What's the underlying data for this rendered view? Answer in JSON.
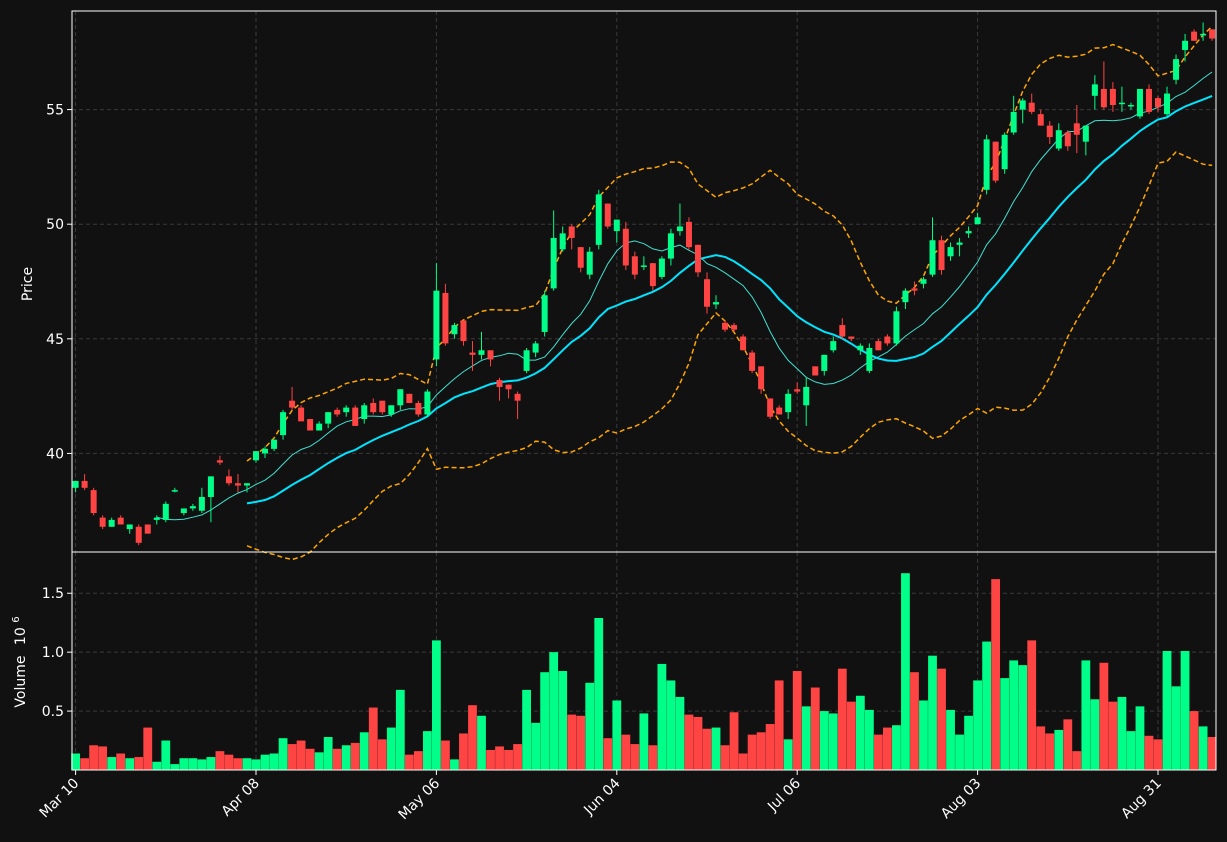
{
  "chart_data": {
    "type": "candlestick",
    "colors": {
      "background": "#111111",
      "up": "#00ff88",
      "down": "#ff4444",
      "ma_fast": "#40e0d0",
      "ma_slow": "#00e5ff",
      "bollinger": "#ffa500",
      "grid": "#3a3a3a",
      "text": "#ffffff"
    },
    "price_panel": {
      "ylabel": "Price",
      "ylim": [
        35.7,
        59.3
      ],
      "yticks": [
        40,
        45,
        50,
        55
      ]
    },
    "volume_panel": {
      "ylabel": "Volume",
      "ylabel_exponent": "10",
      "ylabel_exponent_power": "6",
      "ylim": [
        0,
        1.85
      ],
      "yticks": [
        0.5,
        1.0,
        1.5
      ],
      "ytick_labels": [
        "0.5",
        "1.0",
        "1.5"
      ]
    },
    "x_ticks": [
      {
        "label": "Mar 10",
        "index": 0
      },
      {
        "label": "Apr 08",
        "index": 20
      },
      {
        "label": "May 06",
        "index": 40
      },
      {
        "label": "Jun 04",
        "index": 60
      },
      {
        "label": "Jul 06",
        "index": 80
      },
      {
        "label": "Aug 03",
        "index": 100
      },
      {
        "label": "Aug 31",
        "index": 120
      }
    ],
    "candles": [
      [
        38.5,
        38.8,
        38.3,
        38.8
      ],
      [
        38.8,
        39.1,
        38.4,
        38.5
      ],
      [
        38.4,
        38.5,
        37.3,
        37.4
      ],
      [
        37.2,
        37.3,
        36.7,
        36.8
      ],
      [
        36.8,
        37.2,
        36.8,
        37.1
      ],
      [
        37.2,
        37.3,
        36.9,
        36.9
      ],
      [
        36.7,
        36.9,
        36.5,
        36.9
      ],
      [
        36.8,
        36.9,
        36.0,
        36.1
      ],
      [
        36.9,
        36.9,
        36.5,
        36.5
      ],
      [
        37.1,
        37.3,
        36.9,
        37.2
      ],
      [
        37.1,
        37.9,
        37.0,
        37.8
      ],
      [
        38.4,
        38.5,
        38.3,
        38.4
      ],
      [
        37.4,
        37.6,
        37.3,
        37.6
      ],
      [
        37.6,
        37.8,
        37.5,
        37.7
      ],
      [
        37.5,
        38.5,
        37.4,
        38.1
      ],
      [
        38.1,
        39.0,
        37.0,
        39.0
      ],
      [
        39.7,
        39.9,
        39.5,
        39.6
      ],
      [
        39.0,
        39.3,
        38.6,
        38.7
      ],
      [
        38.7,
        39.1,
        38.3,
        38.6
      ],
      [
        38.6,
        38.7,
        38.3,
        38.7
      ],
      [
        39.7,
        40.1,
        39.6,
        40.1
      ],
      [
        40.0,
        40.3,
        39.8,
        40.2
      ],
      [
        40.2,
        40.6,
        40.1,
        40.6
      ],
      [
        40.8,
        41.9,
        40.6,
        41.8
      ],
      [
        42.3,
        42.9,
        41.9,
        42.0
      ],
      [
        42.0,
        42.1,
        41.4,
        41.4
      ],
      [
        41.5,
        41.5,
        41.0,
        41.0
      ],
      [
        41.0,
        41.4,
        41.0,
        41.3
      ],
      [
        41.3,
        41.8,
        41.1,
        41.8
      ],
      [
        41.9,
        42.0,
        41.6,
        41.7
      ],
      [
        41.8,
        42.1,
        41.6,
        42.0
      ],
      [
        42.0,
        42.1,
        41.2,
        41.2
      ],
      [
        41.5,
        42.2,
        41.3,
        42.1
      ],
      [
        42.2,
        42.4,
        41.7,
        41.8
      ],
      [
        42.3,
        42.3,
        41.7,
        41.8
      ],
      [
        41.7,
        42.1,
        41.6,
        42.1
      ],
      [
        42.1,
        42.8,
        41.9,
        42.8
      ],
      [
        42.6,
        42.6,
        42.2,
        42.2
      ],
      [
        42.2,
        42.3,
        41.6,
        41.7
      ],
      [
        41.7,
        42.8,
        41.6,
        42.7
      ],
      [
        44.1,
        48.3,
        43.8,
        47.1
      ],
      [
        47.0,
        47.4,
        44.7,
        44.8
      ],
      [
        45.2,
        45.7,
        45.0,
        45.6
      ],
      [
        45.8,
        45.8,
        44.7,
        44.9
      ],
      [
        44.4,
        44.9,
        43.6,
        44.3
      ],
      [
        44.3,
        45.3,
        44.1,
        44.5
      ],
      [
        44.5,
        44.5,
        43.8,
        44.1
      ],
      [
        43.2,
        43.3,
        42.3,
        42.9
      ],
      [
        43.0,
        43.0,
        42.4,
        42.8
      ],
      [
        42.6,
        42.7,
        41.5,
        42.3
      ],
      [
        43.6,
        44.6,
        43.5,
        44.5
      ],
      [
        44.4,
        44.9,
        44.2,
        44.8
      ],
      [
        45.3,
        47.1,
        45.1,
        46.9
      ],
      [
        47.2,
        50.6,
        47.1,
        49.4
      ],
      [
        48.9,
        49.9,
        48.8,
        49.6
      ],
      [
        49.9,
        50.0,
        48.9,
        49.4
      ],
      [
        49.0,
        49.0,
        47.9,
        48.1
      ],
      [
        47.8,
        49.0,
        47.6,
        48.8
      ],
      [
        49.1,
        51.5,
        48.9,
        51.3
      ],
      [
        50.9,
        50.9,
        49.8,
        49.9
      ],
      [
        49.7,
        50.2,
        49.2,
        50.2
      ],
      [
        49.8,
        50.1,
        48.0,
        48.2
      ],
      [
        48.6,
        48.8,
        47.6,
        47.8
      ],
      [
        48.2,
        48.6,
        48.0,
        48.2
      ],
      [
        48.3,
        48.3,
        47.1,
        47.3
      ],
      [
        47.7,
        48.6,
        47.6,
        48.5
      ],
      [
        48.5,
        49.8,
        48.2,
        49.6
      ],
      [
        49.7,
        50.9,
        49.5,
        49.9
      ],
      [
        50.1,
        50.3,
        48.9,
        49.0
      ],
      [
        49.1,
        49.1,
        47.7,
        47.9
      ],
      [
        47.6,
        47.9,
        46.1,
        46.4
      ],
      [
        46.5,
        46.9,
        46.3,
        46.6
      ],
      [
        45.7,
        45.8,
        45.3,
        45.4
      ],
      [
        45.6,
        45.7,
        45.3,
        45.4
      ],
      [
        45.1,
        45.2,
        44.5,
        44.5
      ],
      [
        44.4,
        44.5,
        43.5,
        43.6
      ],
      [
        43.8,
        43.8,
        42.6,
        42.8
      ],
      [
        42.4,
        42.4,
        41.5,
        41.6
      ],
      [
        42.0,
        42.1,
        41.7,
        41.7
      ],
      [
        41.8,
        42.8,
        41.5,
        42.6
      ],
      [
        42.8,
        43.1,
        42.6,
        42.7
      ],
      [
        42.1,
        43.3,
        41.2,
        42.9
      ],
      [
        43.8,
        43.8,
        43.4,
        43.4
      ],
      [
        43.6,
        44.3,
        43.4,
        44.3
      ],
      [
        44.5,
        45.1,
        44.4,
        44.9
      ],
      [
        45.6,
        45.9,
        45.0,
        45.1
      ],
      [
        45.1,
        45.1,
        44.9,
        45.0
      ],
      [
        44.5,
        44.8,
        44.3,
        44.7
      ],
      [
        43.6,
        44.8,
        43.5,
        44.6
      ],
      [
        44.9,
        45.0,
        44.5,
        44.5
      ],
      [
        45.1,
        45.2,
        44.7,
        44.8
      ],
      [
        44.8,
        46.4,
        44.7,
        46.2
      ],
      [
        46.6,
        47.2,
        46.3,
        47.1
      ],
      [
        47.2,
        47.5,
        46.9,
        47.1
      ],
      [
        47.4,
        47.7,
        47.2,
        47.6
      ],
      [
        47.8,
        50.3,
        47.7,
        49.3
      ],
      [
        49.3,
        49.5,
        47.8,
        48.0
      ],
      [
        48.6,
        49.2,
        48.4,
        49.0
      ],
      [
        49.1,
        49.4,
        48.6,
        49.2
      ],
      [
        49.6,
        49.9,
        49.4,
        49.7
      ],
      [
        50.0,
        50.5,
        50.0,
        50.3
      ],
      [
        51.5,
        53.9,
        51.3,
        53.7
      ],
      [
        53.6,
        53.6,
        51.8,
        51.9
      ],
      [
        52.4,
        54.0,
        52.2,
        53.9
      ],
      [
        54.0,
        55.6,
        53.9,
        54.9
      ],
      [
        55.0,
        55.5,
        54.4,
        55.4
      ],
      [
        55.3,
        55.7,
        54.8,
        54.9
      ],
      [
        54.8,
        55.0,
        54.3,
        54.3
      ],
      [
        54.3,
        54.5,
        53.5,
        53.8
      ],
      [
        53.3,
        54.4,
        53.2,
        54.1
      ],
      [
        54.0,
        54.1,
        53.2,
        53.4
      ],
      [
        54.4,
        55.2,
        53.1,
        53.9
      ],
      [
        53.6,
        54.2,
        53.0,
        54.3
      ],
      [
        55.6,
        56.5,
        55.0,
        56.1
      ],
      [
        55.9,
        57.1,
        55.0,
        55.1
      ],
      [
        55.9,
        56.2,
        54.9,
        55.2
      ],
      [
        55.3,
        56.0,
        54.9,
        55.3
      ],
      [
        55.2,
        55.3,
        55.0,
        55.2
      ],
      [
        54.7,
        55.9,
        54.6,
        55.9
      ],
      [
        55.9,
        56.1,
        54.8,
        54.9
      ],
      [
        55.5,
        55.6,
        54.9,
        55.1
      ],
      [
        54.8,
        56.0,
        54.7,
        55.7
      ],
      [
        56.3,
        57.4,
        56.1,
        57.2
      ],
      [
        57.6,
        58.3,
        57.1,
        58.0
      ],
      [
        58.4,
        58.5,
        58.0,
        58.0
      ],
      [
        58.3,
        58.8,
        58.0,
        58.3
      ],
      [
        58.5,
        58.5,
        58.0,
        58.1
      ]
    ],
    "volume": [
      0.14,
      0.1,
      0.21,
      0.2,
      0.11,
      0.14,
      0.1,
      0.11,
      0.36,
      0.07,
      0.25,
      0.05,
      0.1,
      0.1,
      0.09,
      0.11,
      0.16,
      0.13,
      0.1,
      0.1,
      0.09,
      0.13,
      0.14,
      0.27,
      0.22,
      0.25,
      0.18,
      0.15,
      0.28,
      0.18,
      0.21,
      0.23,
      0.32,
      0.53,
      0.26,
      0.36,
      0.68,
      0.13,
      0.16,
      0.33,
      1.1,
      0.25,
      0.09,
      0.31,
      0.55,
      0.46,
      0.17,
      0.2,
      0.17,
      0.22,
      0.68,
      0.4,
      0.83,
      1.0,
      0.84,
      0.47,
      0.46,
      0.74,
      1.29,
      0.27,
      0.59,
      0.3,
      0.22,
      0.48,
      0.21,
      0.9,
      0.76,
      0.62,
      0.47,
      0.45,
      0.35,
      0.36,
      0.21,
      0.49,
      0.14,
      0.3,
      0.32,
      0.39,
      0.76,
      0.26,
      0.84,
      0.54,
      0.7,
      0.5,
      0.48,
      0.86,
      0.58,
      0.63,
      0.51,
      0.3,
      0.36,
      0.38,
      1.67,
      0.83,
      0.59,
      0.97,
      0.86,
      0.51,
      0.3,
      0.46,
      0.76,
      1.09,
      1.62,
      0.78,
      0.93,
      0.89,
      1.1,
      0.37,
      0.31,
      0.34,
      0.43,
      0.16,
      0.93,
      0.6,
      0.91,
      0.58,
      0.62,
      0.33,
      0.54,
      0.29,
      0.26,
      1.01,
      0.71,
      1.01,
      0.5,
      0.37,
      0.28
    ]
  }
}
